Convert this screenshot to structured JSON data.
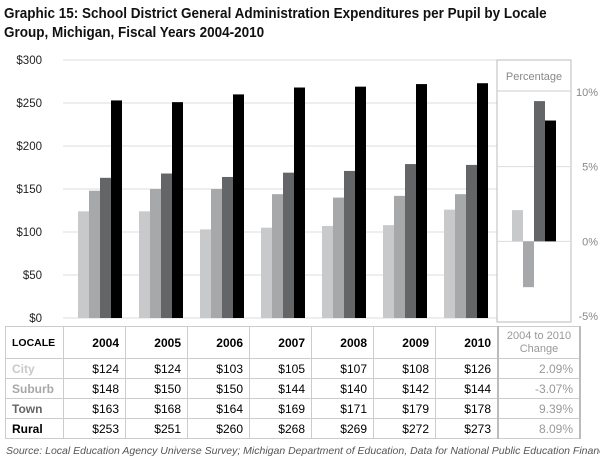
{
  "title": "Graphic 15: School District General Administration Expenditures per Pupil by Locale Group, Michigan, Fiscal Years 2004-2010",
  "source": "Source: Local Education Agency Universe Survey; Michigan Department of Education, Data for National Public Education Financial Survey",
  "chart_data": [
    {
      "type": "bar",
      "categories": [
        "2004",
        "2005",
        "2006",
        "2007",
        "2008",
        "2009",
        "2010"
      ],
      "series": [
        {
          "name": "City",
          "color": "#c8c9cb",
          "values": [
            124,
            124,
            103,
            105,
            107,
            108,
            126
          ]
        },
        {
          "name": "Suburb",
          "color": "#a7a8aa",
          "values": [
            148,
            150,
            150,
            144,
            140,
            142,
            144
          ]
        },
        {
          "name": "Town",
          "color": "#646567",
          "values": [
            163,
            168,
            164,
            169,
            171,
            179,
            178
          ]
        },
        {
          "name": "Rural",
          "color": "#000000",
          "values": [
            253,
            251,
            260,
            268,
            269,
            272,
            273
          ]
        }
      ],
      "ylim": [
        0,
        300
      ],
      "yticks": [
        "$0",
        "$50",
        "$100",
        "$150",
        "$200",
        "$250",
        "$300"
      ],
      "grid": true
    },
    {
      "type": "bar",
      "title": "Percentage",
      "categories": [
        "City",
        "Suburb",
        "Town",
        "Rural"
      ],
      "values": [
        2.09,
        -3.07,
        9.39,
        8.09
      ],
      "colors": [
        "#c8c9cb",
        "#a7a8aa",
        "#646567",
        "#000000"
      ],
      "ylim": [
        -5,
        10
      ],
      "yticks": [
        "-5%",
        "0%",
        "5%",
        "10%"
      ]
    }
  ],
  "table": {
    "locale_header": "LOCALE",
    "years": [
      "2004",
      "2005",
      "2006",
      "2007",
      "2008",
      "2009",
      "2010"
    ],
    "change_header": "2004 to 2010 Change",
    "rows": [
      {
        "locale": "City",
        "color": "#c8c9cb",
        "values": [
          "$124",
          "$124",
          "$103",
          "$105",
          "$107",
          "$108",
          "$126"
        ],
        "change": "2.09%"
      },
      {
        "locale": "Suburb",
        "color": "#a7a8aa",
        "values": [
          "$148",
          "$150",
          "$150",
          "$144",
          "$140",
          "$142",
          "$144"
        ],
        "change": "-3.07%"
      },
      {
        "locale": "Town",
        "color": "#646567",
        "values": [
          "$163",
          "$168",
          "$164",
          "$169",
          "$171",
          "$179",
          "$178"
        ],
        "change": "9.39%"
      },
      {
        "locale": "Rural",
        "color": "#000000",
        "values": [
          "$253",
          "$251",
          "$260",
          "$268",
          "$269",
          "$272",
          "$273"
        ],
        "change": "8.09%"
      }
    ]
  }
}
